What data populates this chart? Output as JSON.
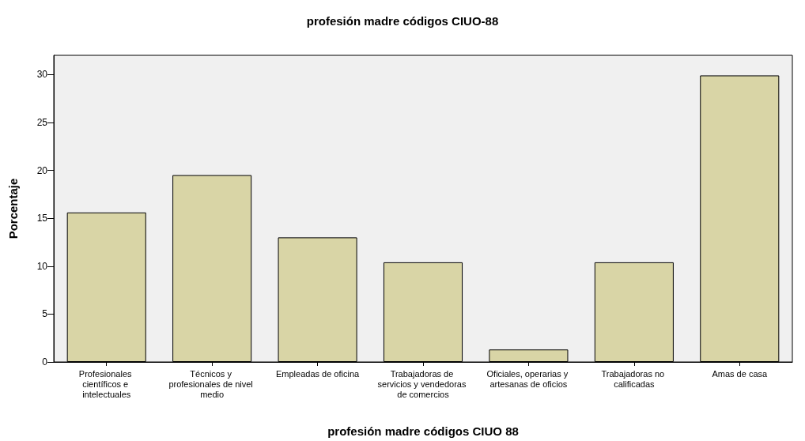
{
  "chart_data": {
    "type": "bar",
    "title": "profesión madre códigos CIUO-88",
    "xlabel": "profesión madre códigos CIUO 88",
    "ylabel": "Porcentaje",
    "categories": [
      "Profesionales científicos e intelectuales",
      "Técnicos y profesionales de nivel medio",
      "Empleadas de oficina",
      "Trabajadoras de servicios y vendedoras de comercios",
      "Oficiales, operarias y artesanas de oficios",
      "Trabajadoras no calificadas",
      "Amas de casa"
    ],
    "values": [
      15.6,
      19.5,
      13.0,
      10.4,
      1.3,
      10.4,
      29.9
    ],
    "color": "#d9d5a6",
    "ylim": [
      0,
      32
    ],
    "yticks": [
      0,
      5,
      10,
      15,
      20,
      25,
      30
    ]
  }
}
